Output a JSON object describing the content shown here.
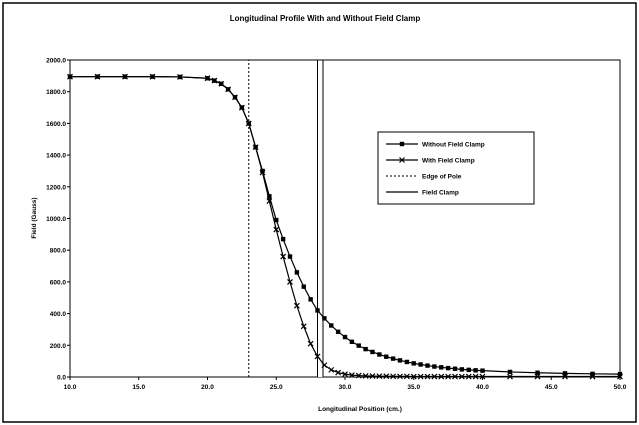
{
  "chart_data": {
    "type": "line",
    "title": "Longitudinal Profile With and Without Field Clamp",
    "xlabel": "Longitudinal Position (cm.)",
    "ylabel": "Field (Gauss)",
    "xlim": [
      10.0,
      50.0
    ],
    "ylim": [
      0.0,
      2000.0
    ],
    "x_ticks": [
      "10.0",
      "15.0",
      "20.0",
      "25.0",
      "30.0",
      "35.0",
      "40.0",
      "45.0",
      "50.0"
    ],
    "y_ticks": [
      "0.0",
      "200.0",
      "400.0",
      "600.0",
      "800.0",
      "1000.0",
      "1200.0",
      "1400.0",
      "1600.0",
      "1800.0",
      "2000.0"
    ],
    "grid": false,
    "legend_position": "right",
    "series": [
      {
        "name": "Without Field Clamp",
        "marker": "square",
        "x": [
          10,
          12,
          14,
          16,
          18,
          20,
          20.5,
          21,
          21.5,
          22,
          22.5,
          23,
          23.5,
          24,
          24.5,
          25,
          25.5,
          26,
          26.5,
          27,
          27.5,
          28,
          28.5,
          29,
          29.5,
          30,
          30.5,
          31,
          31.5,
          32,
          32.5,
          33,
          33.5,
          34,
          34.5,
          35,
          35.5,
          36,
          36.5,
          37,
          37.5,
          38,
          38.5,
          39,
          39.5,
          40,
          42,
          44,
          46,
          48,
          50
        ],
        "y": [
          1895,
          1895,
          1895,
          1895,
          1893,
          1885,
          1870,
          1850,
          1815,
          1765,
          1700,
          1600,
          1450,
          1300,
          1140,
          990,
          870,
          760,
          660,
          570,
          490,
          420,
          370,
          325,
          285,
          252,
          222,
          198,
          176,
          158,
          142,
          128,
          116,
          105,
          95,
          86,
          79,
          72,
          66,
          61,
          56,
          52,
          48,
          45,
          42,
          40,
          32,
          27,
          23,
          20,
          18
        ]
      },
      {
        "name": "With Field Clamp",
        "marker": "x",
        "x": [
          10,
          12,
          14,
          16,
          18,
          20,
          20.5,
          21,
          21.5,
          22,
          22.5,
          23,
          23.5,
          24,
          24.5,
          25,
          25.5,
          26,
          26.5,
          27,
          27.5,
          28,
          28.5,
          29,
          29.5,
          30,
          30.5,
          31,
          31.5,
          32,
          32.5,
          33,
          33.5,
          34,
          34.5,
          35,
          35.5,
          36,
          36.5,
          37,
          37.5,
          38,
          38.5,
          39,
          39.5,
          40,
          42,
          44,
          46,
          48,
          50
        ],
        "y": [
          1895,
          1895,
          1895,
          1895,
          1893,
          1885,
          1870,
          1850,
          1815,
          1765,
          1700,
          1600,
          1450,
          1290,
          1110,
          930,
          760,
          600,
          450,
          320,
          210,
          130,
          75,
          45,
          28,
          18,
          12,
          9,
          7,
          6,
          5,
          5,
          4,
          4,
          4,
          3,
          3,
          3,
          3,
          3,
          3,
          3,
          3,
          3,
          3,
          3,
          3,
          3,
          3,
          3,
          3
        ]
      },
      {
        "name": "Edge of Pole",
        "style": "dotted",
        "x": [
          23.0,
          23.0
        ],
        "y": [
          0,
          2000
        ]
      },
      {
        "name": "Field Clamp",
        "style": "solid",
        "x": [
          28.0,
          28.0,
          28.4,
          28.4
        ],
        "y": [
          0,
          2000,
          2000,
          0
        ]
      }
    ]
  }
}
